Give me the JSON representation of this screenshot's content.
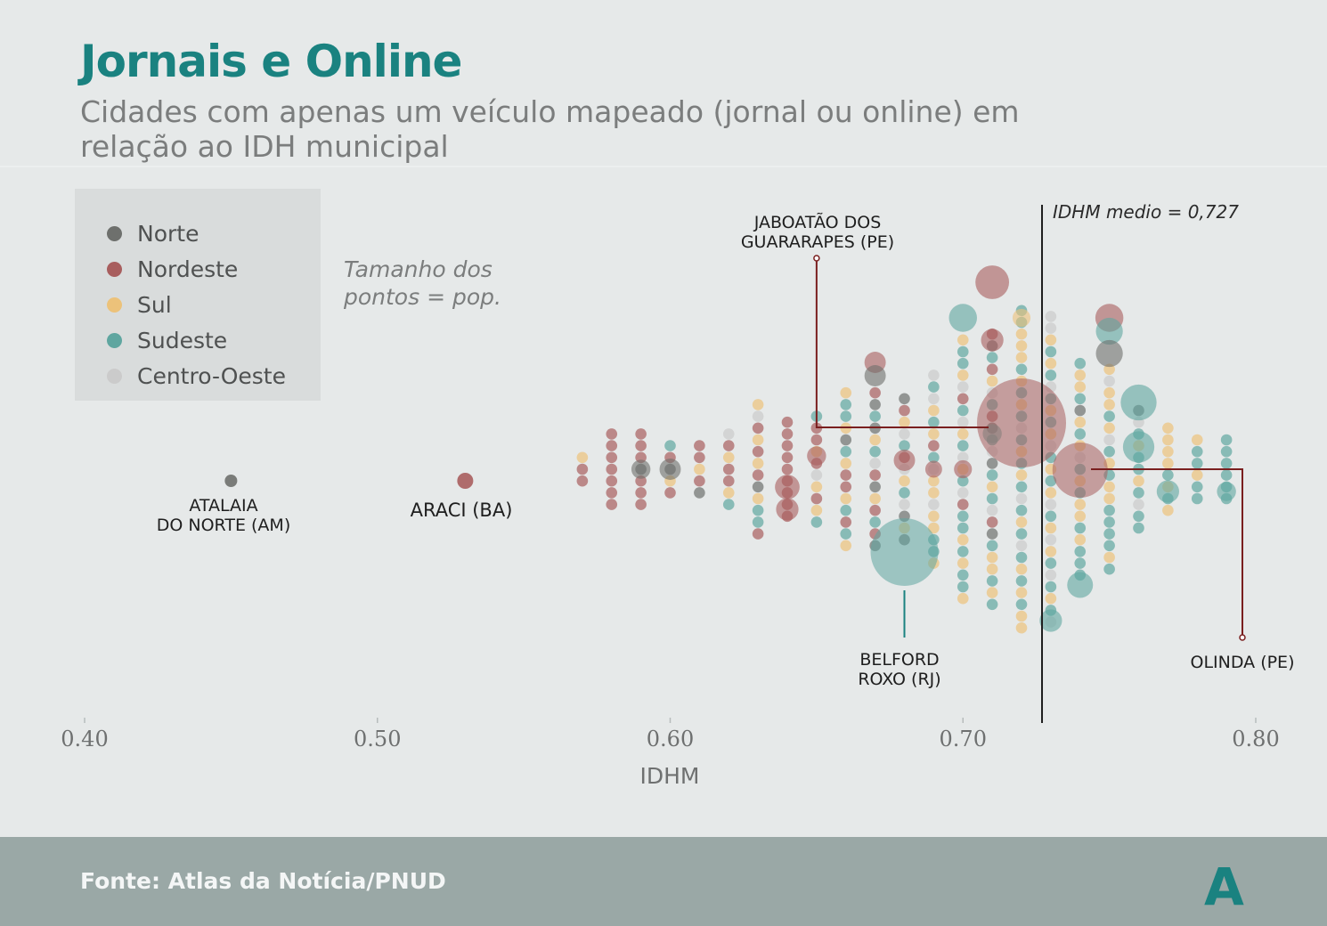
{
  "title": "Jornais e Online",
  "subtitle": "Cidades com apenas um veículo mapeado (jornal ou online) em relação ao IDH municipal",
  "legend": [
    {
      "label": "Norte",
      "color": "#6e706d"
    },
    {
      "label": "Nordeste",
      "color": "#a85e5e"
    },
    {
      "label": "Sul",
      "color": "#ecc27a"
    },
    {
      "label": "Sudeste",
      "color": "#5fa6a0"
    },
    {
      "label": "Centro-Oeste",
      "color": "#cbcbcb"
    }
  ],
  "note": "Tamanho dos pontos = pop.",
  "footer": {
    "source": "Fonte: Atlas da Notícia/PNUD",
    "logo": "A"
  },
  "chart_data": {
    "type": "scatter",
    "xlabel": "IDHM",
    "ylabel": "",
    "xlim": [
      0.4,
      0.8
    ],
    "xticks": [
      "0.40",
      "0.50",
      "0.60",
      "0.70",
      "0.80"
    ],
    "reference_line": {
      "x": 0.727,
      "label": "IDHM medio = 0,727"
    },
    "annotations": [
      {
        "text": "ATALAIA\nDO NORTE (AM)",
        "x": 0.45
      },
      {
        "text": "ARACI (BA)",
        "x": 0.53
      },
      {
        "text": "JABOATÃO DOS\nGUARARAPES (PE)",
        "x": 0.65
      },
      {
        "text": "BELFORD\nROXO (RJ)",
        "x": 0.68
      },
      {
        "text": "OLINDA (PE)",
        "x": 0.795
      }
    ],
    "highlighted": [
      {
        "name": "ATALAIA DO NORTE (AM)",
        "x": 0.45,
        "region": "Norte"
      },
      {
        "name": "ARACI (BA)",
        "x": 0.53,
        "region": "Nordeste"
      },
      {
        "name": "JABOATÃO DOS GUARARAPES (PE)",
        "x": 0.72,
        "region": "Nordeste"
      },
      {
        "name": "BELFORD ROXO (RJ)",
        "x": 0.68,
        "region": "Sudeste"
      },
      {
        "name": "OLINDA (PE)",
        "x": 0.74,
        "region": "Nordeste"
      }
    ],
    "columns": [
      {
        "x": 0.57,
        "pts": [
          "S",
          "N",
          "N"
        ]
      },
      {
        "x": 0.58,
        "pts": [
          "N",
          "N",
          "N",
          "N",
          "N",
          "N",
          "N"
        ]
      },
      {
        "x": 0.59,
        "pts": [
          "N",
          "N",
          "N",
          "No",
          "N",
          "N",
          "N"
        ]
      },
      {
        "x": 0.6,
        "pts": [
          "Se",
          "N",
          "No",
          "S",
          "N"
        ]
      },
      {
        "x": 0.61,
        "pts": [
          "N",
          "N",
          "S",
          "N",
          "No"
        ]
      },
      {
        "x": 0.62,
        "pts": [
          "C",
          "N",
          "S",
          "N",
          "N",
          "S",
          "Se"
        ]
      },
      {
        "x": 0.63,
        "pts": [
          "S",
          "C",
          "N",
          "S",
          "N",
          "S",
          "N",
          "No",
          "S",
          "Se",
          "Se",
          "N"
        ]
      },
      {
        "x": 0.64,
        "pts": [
          "N",
          "N",
          "N",
          "N",
          "N",
          "N",
          "N",
          "N",
          "N"
        ]
      },
      {
        "x": 0.65,
        "pts": [
          "Se",
          "N",
          "N",
          "S",
          "N",
          "C",
          "S",
          "N",
          "S",
          "Se"
        ]
      },
      {
        "x": 0.66,
        "pts": [
          "S",
          "Se",
          "Se",
          "S",
          "No",
          "Se",
          "S",
          "N",
          "N",
          "S",
          "Se",
          "N",
          "Se",
          "S"
        ]
      },
      {
        "x": 0.67,
        "pts": [
          "N",
          "No",
          "Se",
          "No",
          "S",
          "Se",
          "C",
          "N",
          "No",
          "S",
          "N",
          "Se",
          "N",
          "No"
        ]
      },
      {
        "x": 0.68,
        "pts": [
          "No",
          "N",
          "S",
          "C",
          "Se",
          "N",
          "C",
          "S",
          "Se",
          "C",
          "No",
          "S",
          "No"
        ]
      },
      {
        "x": 0.69,
        "pts": [
          "C",
          "Se",
          "C",
          "S",
          "Se",
          "S",
          "N",
          "Se",
          "C",
          "S",
          "S",
          "C",
          "S",
          "S",
          "Se",
          "Se",
          "S"
        ]
      },
      {
        "x": 0.7,
        "pts": [
          "S",
          "Se",
          "Se",
          "S",
          "C",
          "N",
          "Se",
          "C",
          "S",
          "Se",
          "C",
          "S",
          "Se",
          "C",
          "N",
          "Se",
          "Se",
          "S",
          "Se",
          "S",
          "Se",
          "Se",
          "S"
        ]
      },
      {
        "x": 0.71,
        "pts": [
          "N",
          "No",
          "Se",
          "N",
          "S",
          "C",
          "Se",
          "N",
          "No",
          "Se",
          "C",
          "No",
          "Se",
          "S",
          "Se",
          "C",
          "N",
          "No",
          "Se",
          "S",
          "S",
          "Se",
          "S",
          "Se"
        ]
      },
      {
        "x": 0.72,
        "pts": [
          "Se",
          "Se",
          "S",
          "S",
          "S",
          "Se",
          "S",
          "Se",
          "S",
          "Se",
          "C",
          "Se",
          "S",
          "Se",
          "S",
          "Se",
          "C",
          "Se",
          "S",
          "Se",
          "C",
          "Se",
          "S",
          "Se",
          "S",
          "Se",
          "S",
          "S"
        ]
      },
      {
        "x": 0.73,
        "pts": [
          "C",
          "C",
          "S",
          "Se",
          "S",
          "Se",
          "C",
          "Se",
          "S",
          "Se",
          "S",
          "C",
          "Se",
          "S",
          "Se",
          "S",
          "C",
          "Se",
          "S",
          "C",
          "S",
          "Se",
          "C",
          "Se",
          "S",
          "Se",
          "C"
        ]
      },
      {
        "x": 0.74,
        "pts": [
          "Se",
          "S",
          "S",
          "Se",
          "No",
          "S",
          "Se",
          "S",
          "C",
          "Se",
          "S",
          "Se",
          "S",
          "S",
          "Se",
          "S",
          "Se",
          "Se",
          "Se"
        ]
      },
      {
        "x": 0.75,
        "pts": [
          "S",
          "C",
          "S",
          "S",
          "Se",
          "S",
          "C",
          "Se",
          "S",
          "Se",
          "S",
          "S",
          "Se",
          "Se",
          "Se",
          "Se",
          "S",
          "Se"
        ]
      },
      {
        "x": 0.76,
        "pts": [
          "No",
          "C",
          "Se",
          "S",
          "Se",
          "Se",
          "S",
          "Se",
          "C",
          "Se",
          "Se"
        ]
      },
      {
        "x": 0.77,
        "pts": [
          "S",
          "S",
          "S",
          "S",
          "Se",
          "S",
          "Se",
          "S"
        ]
      },
      {
        "x": 0.78,
        "pts": [
          "S",
          "Se",
          "Se",
          "S",
          "Se",
          "Se"
        ]
      },
      {
        "x": 0.79,
        "pts": [
          "Se",
          "Se",
          "Se",
          "Se",
          "Se",
          "Se"
        ]
      }
    ],
    "big_points": [
      {
        "x": 0.71,
        "region": "Nordeste",
        "size": 3
      },
      {
        "x": 0.71,
        "region": "Nordeste",
        "size": 2
      },
      {
        "x": 0.7,
        "region": "Sudeste",
        "size": 2.5
      },
      {
        "x": 0.72,
        "region": "Sul",
        "size": 1.6
      },
      {
        "x": 0.75,
        "region": "Nordeste",
        "size": 2.5
      },
      {
        "x": 0.75,
        "region": "Sudeste",
        "size": 2.4
      },
      {
        "x": 0.75,
        "region": "Norte",
        "size": 2.4
      },
      {
        "x": 0.76,
        "region": "Sudeste",
        "size": 3.2
      },
      {
        "x": 0.76,
        "region": "Sudeste",
        "size": 2.8
      },
      {
        "x": 0.77,
        "region": "Sudeste",
        "size": 2
      },
      {
        "x": 0.79,
        "region": "Sudeste",
        "size": 1.7
      },
      {
        "x": 0.74,
        "region": "Sudeste",
        "size": 2.3
      },
      {
        "x": 0.73,
        "region": "Sudeste",
        "size": 2
      },
      {
        "x": 0.71,
        "region": "Sudeste",
        "size": 1.7
      },
      {
        "x": 0.67,
        "region": "Nordeste",
        "size": 1.9
      },
      {
        "x": 0.67,
        "region": "Norte",
        "size": 1.9
      },
      {
        "x": 0.64,
        "region": "Nordeste",
        "size": 2.2
      },
      {
        "x": 0.64,
        "region": "Nordeste",
        "size": 2
      },
      {
        "x": 0.6,
        "region": "Norte",
        "size": 1.9
      },
      {
        "x": 0.59,
        "region": "Norte",
        "size": 1.7
      },
      {
        "x": 0.65,
        "region": "Nordeste",
        "size": 1.7
      },
      {
        "x": 0.68,
        "region": "Nordeste",
        "size": 1.9
      },
      {
        "x": 0.69,
        "region": "Nordeste",
        "size": 1.5
      },
      {
        "x": 0.7,
        "region": "Nordeste",
        "size": 1.6
      }
    ]
  }
}
